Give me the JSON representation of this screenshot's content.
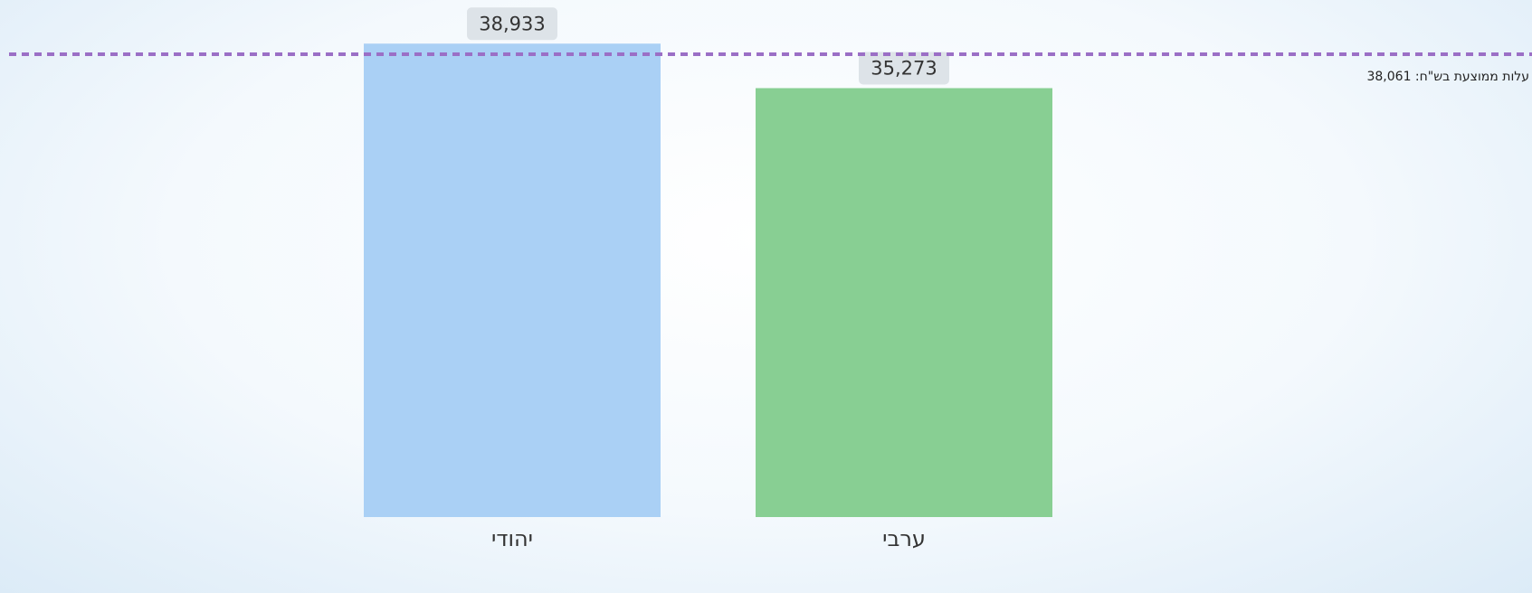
{
  "chart_data": {
    "type": "bar",
    "categories": [
      "יהודי",
      "ערבי"
    ],
    "values": [
      38933,
      35273
    ],
    "value_labels": [
      "38,933",
      "35,273"
    ],
    "colors": [
      "#aad0f5",
      "#88cf93"
    ],
    "ylim": [
      0,
      42000
    ],
    "reference_line": {
      "value": 38061,
      "label": "עלות ממוצעת בש\"ח: 38,061",
      "color": "#9b6fc6"
    }
  }
}
